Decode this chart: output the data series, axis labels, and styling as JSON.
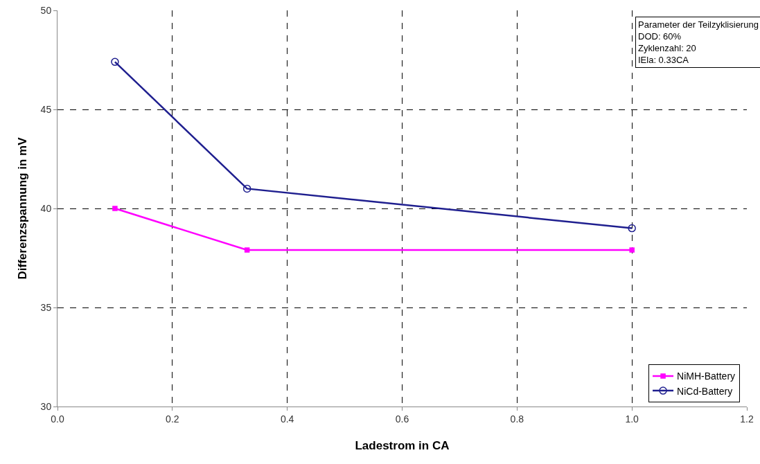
{
  "chart_data": {
    "type": "line",
    "xlabel": "Ladestrom in CA",
    "ylabel": "Differenzspannung in mV",
    "xlim": [
      0,
      1.2
    ],
    "xticks": [
      {
        "value": 0,
        "label": "0.0"
      },
      {
        "value": 0.2,
        "label": "0.2"
      },
      {
        "value": 0.4,
        "label": "0.4"
      },
      {
        "value": 0.6,
        "label": "0.6"
      },
      {
        "value": 0.8,
        "label": "0.8"
      },
      {
        "value": 1,
        "label": "1.0"
      },
      {
        "value": 1.2,
        "label": "1.2"
      }
    ],
    "ylim": [
      30,
      50
    ],
    "yticks": [
      30,
      35,
      40,
      45,
      50
    ],
    "grid": true,
    "legend": "bottom right",
    "line_style": "solid",
    "x": [
      0.1,
      0.33,
      1.0
    ],
    "series": [
      {
        "name": "NiMH-Battery",
        "color": "#ff00ff",
        "marker": "square",
        "values": [
          40.0,
          37.9,
          37.9
        ]
      },
      {
        "name": "NiCd-Battery",
        "color": "#1f1f8f",
        "marker": "circle",
        "values": [
          47.4,
          41.0,
          39.0
        ]
      }
    ],
    "annotations": [
      "Parameter der Teilzyklisierung\nDOD: 60%\nZyklenzahl: 20\nIEla: 0.33CA"
    ]
  }
}
